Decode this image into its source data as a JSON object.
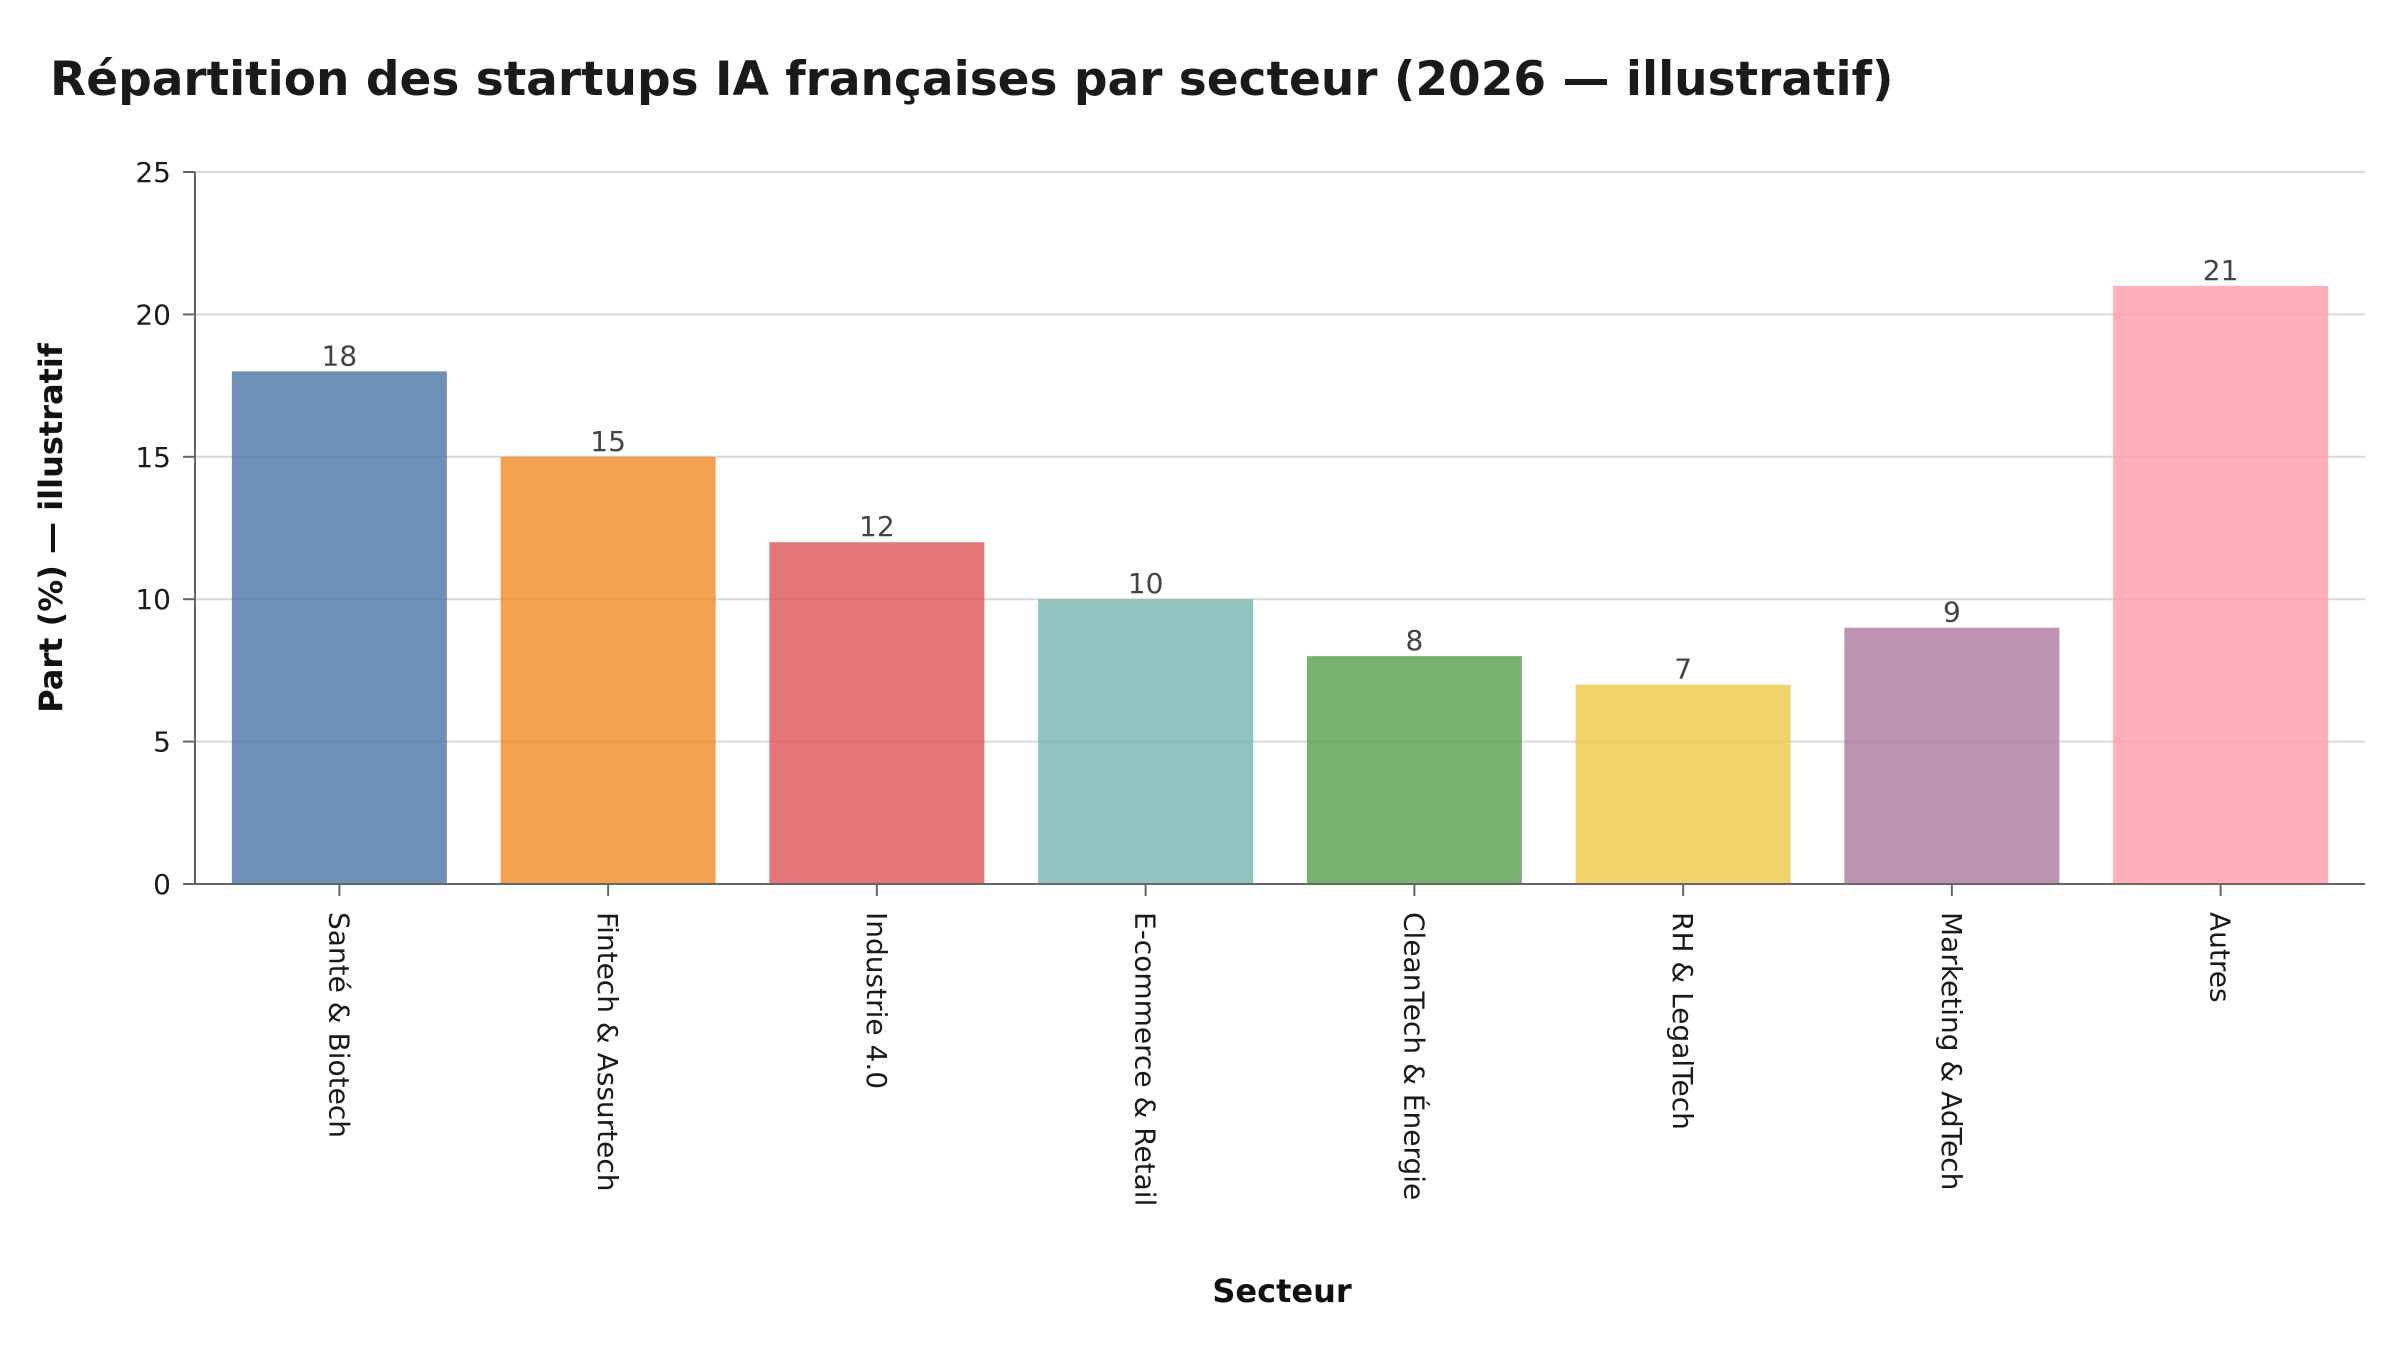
{
  "chart_data": {
    "type": "bar",
    "title": "Répartition des startups IA françaises par secteur (2026 — illustratif)",
    "xlabel": "Secteur",
    "ylabel": "Part (%) — illustratif",
    "categories": [
      "Santé & Biotech",
      "Fintech & Assurtech",
      "Industrie 4.0",
      "E-commerce & Retail",
      "CleanTech & Énergie",
      "RH & LegalTech",
      "Marketing & AdTech",
      "Autres"
    ],
    "values": [
      18,
      15,
      12,
      10,
      8,
      7,
      9,
      21
    ],
    "value_labels": [
      "18",
      "15",
      "12",
      "10",
      "8",
      "7",
      "9",
      "21"
    ],
    "colors": [
      "#4e79a7",
      "#f28e2b",
      "#e15759",
      "#76b7b2",
      "#59a14f",
      "#edc948",
      "#b07aa1",
      "#ff9da7"
    ],
    "bar_opacity": 0.82,
    "ylim": [
      0,
      25
    ],
    "yticks": [
      0,
      5,
      10,
      15,
      20,
      25
    ],
    "ytick_labels": [
      "0",
      "5",
      "10",
      "15",
      "20",
      "25"
    ],
    "grid": true,
    "legend": "none"
  }
}
